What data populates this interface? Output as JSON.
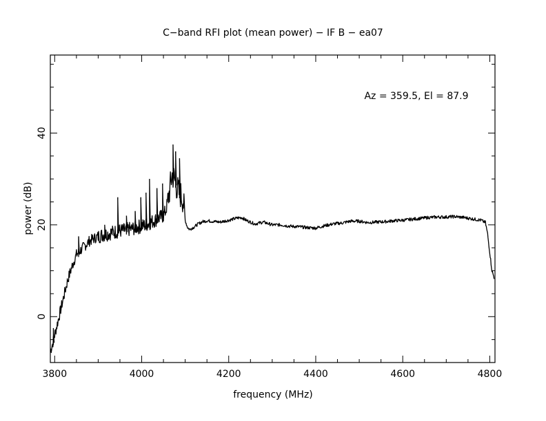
{
  "chart_data": {
    "type": "line",
    "title": "C−band RFI plot (mean power) − IF B − ea07",
    "xlabel": "frequency (MHz)",
    "ylabel": "power (dB)",
    "annotation": "Az = 359.5, El = 87.9",
    "xlim": [
      3790,
      4812
    ],
    "ylim": [
      -10,
      57
    ],
    "x_ticks": [
      3800,
      4000,
      4200,
      4400,
      4600,
      4800
    ],
    "y_ticks": [
      0,
      20,
      40
    ],
    "grid": false,
    "series": [
      {
        "x": [
          3790,
          3795,
          3800,
          3805,
          3810,
          3820,
          3830,
          3840,
          3850,
          3860,
          3870,
          3880,
          3890,
          3900,
          3910,
          3920,
          3930,
          3940,
          3950,
          3960,
          3970,
          3980,
          3990,
          4000,
          4010,
          4020,
          4030,
          4040,
          4050,
          4055,
          4060,
          4065,
          4070,
          4075,
          4080,
          4085,
          4090,
          4095,
          4100,
          4105,
          4110,
          4120,
          4130,
          4140,
          4150,
          4160,
          4180,
          4200,
          4220,
          4230,
          4240,
          4260,
          4280,
          4300,
          4320,
          4340,
          4360,
          4380,
          4400,
          4420,
          4440,
          4460,
          4480,
          4500,
          4520,
          4540,
          4560,
          4580,
          4600,
          4620,
          4640,
          4660,
          4680,
          4700,
          4720,
          4740,
          4760,
          4780,
          4790,
          4795,
          4800,
          4805,
          4810
        ],
        "y": [
          -7.5,
          -6,
          -4,
          -2,
          0,
          4,
          8,
          11,
          13.5,
          14.5,
          15.5,
          16.5,
          17,
          17.5,
          17.8,
          18,
          18.3,
          18.5,
          18.7,
          18.8,
          19,
          19.2,
          19.5,
          19.7,
          20,
          20.5,
          21,
          21.5,
          22,
          23,
          25,
          28,
          31,
          30,
          28.5,
          27,
          26.5,
          25.5,
          21,
          19.5,
          19,
          19.5,
          20.2,
          20.7,
          20.9,
          20.8,
          20.6,
          21,
          21.5,
          21.6,
          21,
          20.2,
          20.6,
          20,
          20,
          19.7,
          19.6,
          19.4,
          19.3,
          19.8,
          20.2,
          20.4,
          20.8,
          20.8,
          20.5,
          20.6,
          20.7,
          20.9,
          21,
          21.2,
          21.4,
          21.6,
          21.7,
          21.7,
          21.8,
          21.6,
          21.3,
          21,
          20.5,
          18,
          14,
          10,
          8.5
        ],
        "color": "#000000"
      }
    ],
    "spikes": [
      {
        "x": 3797,
        "y": -2.5
      },
      {
        "x": 3855,
        "y": 17.5
      },
      {
        "x": 3915,
        "y": 20
      },
      {
        "x": 3945,
        "y": 26
      },
      {
        "x": 3965,
        "y": 22
      },
      {
        "x": 3985,
        "y": 23
      },
      {
        "x": 3998,
        "y": 26
      },
      {
        "x": 4010,
        "y": 27
      },
      {
        "x": 4018,
        "y": 30
      },
      {
        "x": 4035,
        "y": 28
      },
      {
        "x": 4048,
        "y": 29
      },
      {
        "x": 4072,
        "y": 37.5
      },
      {
        "x": 4078,
        "y": 36
      },
      {
        "x": 4087,
        "y": 34.5
      }
    ]
  }
}
